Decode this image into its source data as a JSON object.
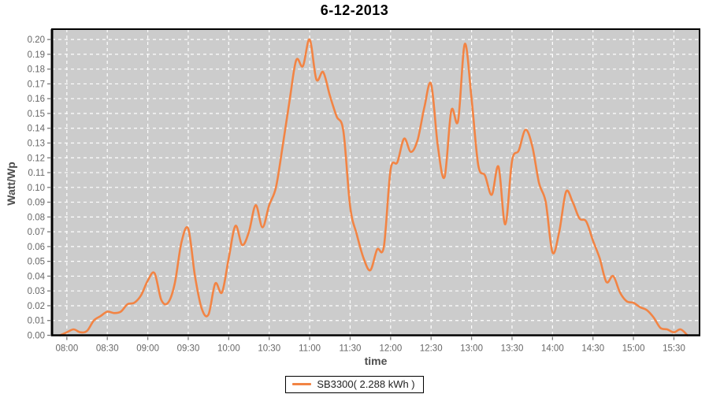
{
  "colors": {
    "line": "#f28444",
    "plot_bg": "#cccccc",
    "grid": "#ffffff",
    "border": "#000000",
    "tick": "#777777",
    "tick_label": "#666666"
  },
  "legend": {
    "label": "SB3300( 2.288 kWh )"
  },
  "chart_data": {
    "type": "line",
    "title": "6-12-2013",
    "xlabel": "time",
    "ylabel": "Watt/Wp",
    "grid": true,
    "legend_position": "bottom",
    "ylim": [
      0,
      0.207
    ],
    "ytick_step": 0.01,
    "ytick_max": 0.2,
    "xlim_minutes": [
      469,
      949
    ],
    "xticks": [
      "08:00",
      "08:30",
      "09:00",
      "09:30",
      "10:00",
      "10:30",
      "11:00",
      "11:30",
      "12:00",
      "12:30",
      "13:00",
      "13:30",
      "14:00",
      "14:30",
      "15:00",
      "15:30"
    ],
    "x": [
      "07:55",
      "08:00",
      "08:05",
      "08:10",
      "08:15",
      "08:20",
      "08:25",
      "08:30",
      "08:35",
      "08:40",
      "08:45",
      "08:50",
      "08:55",
      "09:00",
      "09:05",
      "09:10",
      "09:15",
      "09:20",
      "09:25",
      "09:30",
      "09:35",
      "09:40",
      "09:45",
      "09:50",
      "09:55",
      "10:00",
      "10:05",
      "10:10",
      "10:15",
      "10:20",
      "10:25",
      "10:30",
      "10:35",
      "10:40",
      "10:45",
      "10:50",
      "10:55",
      "11:00",
      "11:05",
      "11:10",
      "11:15",
      "11:20",
      "11:25",
      "11:30",
      "11:35",
      "11:40",
      "11:45",
      "11:50",
      "11:55",
      "12:00",
      "12:05",
      "12:10",
      "12:15",
      "12:20",
      "12:25",
      "12:30",
      "12:35",
      "12:40",
      "12:45",
      "12:50",
      "12:55",
      "13:00",
      "13:05",
      "13:10",
      "13:15",
      "13:20",
      "13:25",
      "13:30",
      "13:35",
      "13:40",
      "13:45",
      "13:50",
      "13:55",
      "14:00",
      "14:05",
      "14:10",
      "14:15",
      "14:20",
      "14:25",
      "14:30",
      "14:35",
      "14:40",
      "14:45",
      "14:50",
      "14:55",
      "15:00",
      "15:05",
      "15:10",
      "15:15",
      "15:20",
      "15:25",
      "15:30",
      "15:35",
      "15:40"
    ],
    "series": [
      {
        "name": "SB3300( 2.288 kWh )",
        "values": [
          0.0,
          0.002,
          0.004,
          0.002,
          0.003,
          0.01,
          0.013,
          0.016,
          0.015,
          0.016,
          0.021,
          0.022,
          0.027,
          0.037,
          0.042,
          0.024,
          0.022,
          0.035,
          0.063,
          0.072,
          0.04,
          0.018,
          0.014,
          0.035,
          0.029,
          0.052,
          0.074,
          0.061,
          0.07,
          0.088,
          0.073,
          0.088,
          0.1,
          0.128,
          0.158,
          0.186,
          0.182,
          0.2,
          0.173,
          0.178,
          0.162,
          0.148,
          0.138,
          0.087,
          0.068,
          0.052,
          0.044,
          0.058,
          0.06,
          0.112,
          0.117,
          0.133,
          0.124,
          0.132,
          0.154,
          0.17,
          0.128,
          0.107,
          0.152,
          0.145,
          0.197,
          0.16,
          0.115,
          0.108,
          0.095,
          0.114,
          0.075,
          0.118,
          0.125,
          0.139,
          0.128,
          0.103,
          0.09,
          0.056,
          0.07,
          0.097,
          0.09,
          0.079,
          0.077,
          0.064,
          0.052,
          0.036,
          0.04,
          0.029,
          0.023,
          0.022,
          0.019,
          0.017,
          0.012,
          0.005,
          0.004,
          0.002,
          0.004,
          0.0
        ]
      }
    ]
  }
}
